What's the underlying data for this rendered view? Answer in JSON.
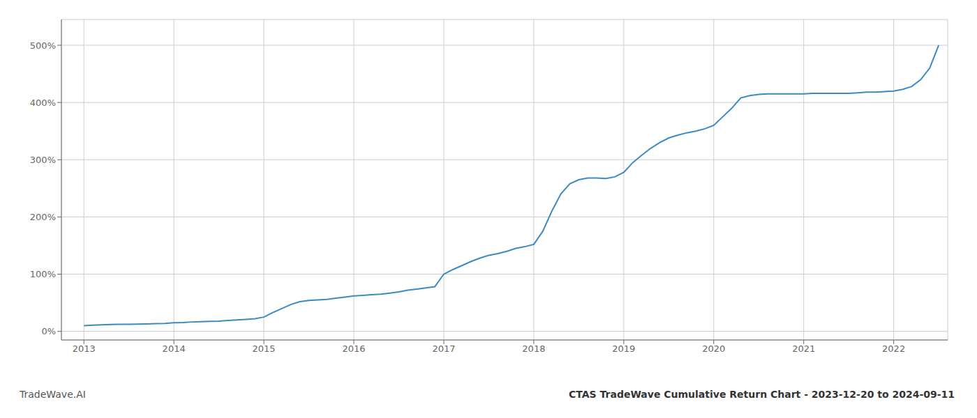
{
  "chart_data": {
    "type": "line",
    "title": "CTAS TradeWave Cumulative Return Chart - 2023-12-20 to 2024-09-11",
    "annotations": [
      "TradeWave.AI"
    ],
    "x": [
      2013.0,
      2013.1,
      2013.2,
      2013.3,
      2013.4,
      2013.5,
      2013.6,
      2013.7,
      2013.8,
      2013.9,
      2014.0,
      2014.1,
      2014.2,
      2014.3,
      2014.4,
      2014.5,
      2014.6,
      2014.7,
      2014.8,
      2014.9,
      2015.0,
      2015.1,
      2015.2,
      2015.3,
      2015.4,
      2015.5,
      2015.6,
      2015.7,
      2015.8,
      2015.9,
      2016.0,
      2016.1,
      2016.2,
      2016.3,
      2016.4,
      2016.5,
      2016.6,
      2016.7,
      2016.8,
      2016.9,
      2017.0,
      2017.1,
      2017.2,
      2017.3,
      2017.4,
      2017.5,
      2017.6,
      2017.7,
      2017.8,
      2017.9,
      2018.0,
      2018.1,
      2018.2,
      2018.3,
      2018.4,
      2018.5,
      2018.6,
      2018.7,
      2018.8,
      2018.9,
      2019.0,
      2019.1,
      2019.2,
      2019.3,
      2019.4,
      2019.5,
      2019.6,
      2019.7,
      2019.8,
      2019.9,
      2020.0,
      2020.1,
      2020.2,
      2020.3,
      2020.4,
      2020.5,
      2020.6,
      2020.7,
      2020.8,
      2020.9,
      2021.0,
      2021.1,
      2021.2,
      2021.3,
      2021.4,
      2021.5,
      2021.6,
      2021.7,
      2021.8,
      2021.9,
      2022.0,
      2022.1,
      2022.2,
      2022.3,
      2022.4,
      2022.5
    ],
    "values": [
      10,
      11,
      11.5,
      12,
      12.5,
      12.5,
      12.8,
      13,
      13.5,
      14,
      15,
      15.5,
      16.5,
      17,
      17.5,
      18,
      19,
      20,
      21,
      22,
      25,
      33,
      40,
      47,
      52,
      54,
      55,
      56,
      58,
      60,
      62,
      63,
      64,
      65,
      67,
      69,
      72,
      74,
      76,
      78,
      100,
      108,
      115,
      122,
      128,
      133,
      136,
      140,
      145,
      148,
      152,
      175,
      210,
      240,
      258,
      265,
      268,
      268,
      267,
      270,
      278,
      295,
      308,
      320,
      330,
      338,
      343,
      347,
      350,
      354,
      360,
      375,
      390,
      408,
      412,
      414,
      415,
      415,
      415,
      415,
      415,
      416,
      416,
      416,
      416,
      416,
      417,
      418,
      418,
      419,
      420,
      423,
      428,
      440,
      460,
      500
    ],
    "color": "#3a8bbf",
    "xlim": [
      2012.75,
      2022.6
    ],
    "xticks": [
      2013,
      2014,
      2015,
      2016,
      2017,
      2018,
      2019,
      2020,
      2021,
      2022
    ],
    "ylim": [
      -15,
      545
    ],
    "yticks": [
      {
        "value": 0,
        "label": "0%"
      },
      {
        "value": 100,
        "label": "100%"
      },
      {
        "value": 200,
        "label": "200%"
      },
      {
        "value": 300,
        "label": "300%"
      },
      {
        "value": 400,
        "label": "400%"
      },
      {
        "value": 500,
        "label": "500%"
      }
    ],
    "grid": true
  }
}
